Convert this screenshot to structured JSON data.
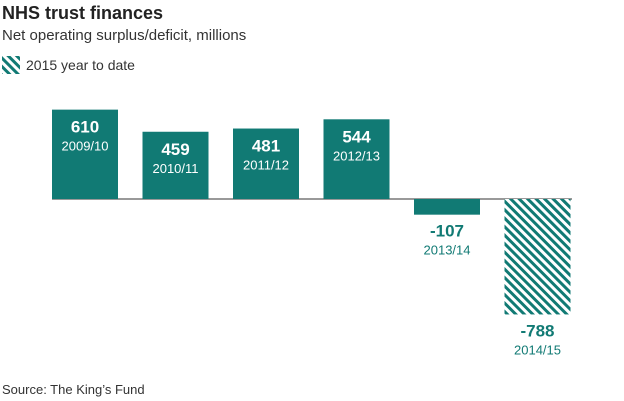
{
  "header": {
    "title": "NHS trust finances",
    "subtitle": "Net operating surplus/deficit, millions"
  },
  "legend": {
    "label": "2015 year to date",
    "pattern": "hatched"
  },
  "colors": {
    "bar": "#117a74",
    "hatch_light": "#ffffff",
    "text_on_bar": "#ffffff",
    "axis": "#333333",
    "negative_label": "#117a74"
  },
  "source": "Source: The King’s Fund",
  "chart_data": {
    "type": "bar",
    "title": "NHS trust finances",
    "subtitle": "Net operating surplus/deficit, millions",
    "categories": [
      "2009/10",
      "2010/11",
      "2011/12",
      "2012/13",
      "2013/14",
      "2014/15"
    ],
    "values": [
      610,
      459,
      481,
      544,
      -107,
      -788
    ],
    "value_labels": [
      "610",
      "459",
      "481",
      "544",
      "-107",
      "-788"
    ],
    "hatched": [
      false,
      false,
      false,
      false,
      false,
      true
    ],
    "legend": [
      "2015 year to date"
    ],
    "legend_position": "top-left",
    "grid": false,
    "ylim": [
      -788,
      610
    ]
  }
}
